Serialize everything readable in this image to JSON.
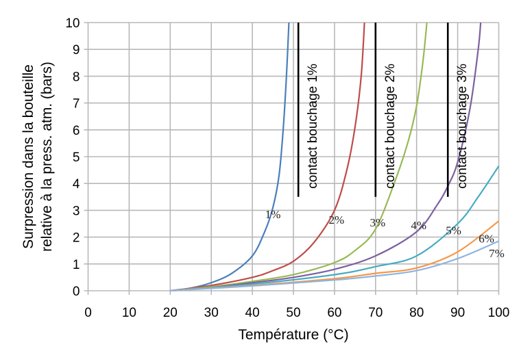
{
  "chart_data": {
    "type": "line",
    "title": "",
    "xlabel": "Température (°C)",
    "ylabel_lines": [
      "Surpression dans la bouteille",
      "relative à la press. atm. (bars)"
    ],
    "xlim": [
      0,
      100
    ],
    "ylim": [
      0,
      10
    ],
    "xticks": [
      "0",
      "10",
      "20",
      "30",
      "40",
      "50",
      "60",
      "70",
      "80",
      "90",
      "100"
    ],
    "yticks": [
      "0",
      "1",
      "2",
      "3",
      "4",
      "5",
      "6",
      "7",
      "8",
      "9",
      "10"
    ],
    "grid": true,
    "series": [
      {
        "name": "1%",
        "color": "#4a7ebb",
        "label_at": [
          45,
          2.7
        ],
        "points": [
          [
            20,
            0
          ],
          [
            25,
            0.1
          ],
          [
            30,
            0.3
          ],
          [
            35,
            0.65
          ],
          [
            40,
            1.3
          ],
          [
            43,
            2.2
          ],
          [
            45,
            3.1
          ],
          [
            46.5,
            4.3
          ],
          [
            47.5,
            6
          ],
          [
            48.3,
            8
          ],
          [
            48.9,
            10
          ]
        ]
      },
      {
        "name": "2%",
        "color": "#be4b48",
        "label_at": [
          60.5,
          2.5
        ],
        "points": [
          [
            20,
            0
          ],
          [
            30,
            0.2
          ],
          [
            40,
            0.5
          ],
          [
            45,
            0.75
          ],
          [
            50,
            1.1
          ],
          [
            55,
            1.8
          ],
          [
            60,
            3.0
          ],
          [
            63,
            4.5
          ],
          [
            65,
            6.1
          ],
          [
            66.5,
            8
          ],
          [
            67.3,
            10
          ]
        ]
      },
      {
        "name": "3%",
        "color": "#98b954",
        "label_at": [
          70.5,
          2.4
        ],
        "points": [
          [
            20,
            0
          ],
          [
            30,
            0.15
          ],
          [
            40,
            0.35
          ],
          [
            50,
            0.6
          ],
          [
            60,
            1.05
          ],
          [
            65,
            1.5
          ],
          [
            70,
            2.3
          ],
          [
            75,
            4.2
          ],
          [
            78,
            5.6
          ],
          [
            80,
            6.9
          ],
          [
            81.5,
            8.5
          ],
          [
            82.5,
            10
          ]
        ]
      },
      {
        "name": "4%",
        "color": "#7d60a0",
        "label_at": [
          80.5,
          2.3
        ],
        "points": [
          [
            20,
            0
          ],
          [
            30,
            0.12
          ],
          [
            40,
            0.3
          ],
          [
            50,
            0.5
          ],
          [
            60,
            0.8
          ],
          [
            70,
            1.3
          ],
          [
            80,
            2.2
          ],
          [
            85,
            3.2
          ],
          [
            87.6,
            3.9
          ],
          [
            90,
            4.8
          ],
          [
            93,
            6.8
          ],
          [
            95,
            9
          ],
          [
            95.6,
            10
          ]
        ]
      },
      {
        "name": "5%",
        "color": "#46aac5",
        "label_at": [
          89,
          2.1
        ],
        "points": [
          [
            20,
            0
          ],
          [
            40,
            0.25
          ],
          [
            60,
            0.6
          ],
          [
            70,
            0.9
          ],
          [
            80,
            1.3
          ],
          [
            90,
            2.5
          ],
          [
            95,
            3.5
          ],
          [
            100,
            4.65
          ]
        ]
      },
      {
        "name": "6%",
        "color": "#f79646",
        "label_at": [
          97,
          1.8
        ],
        "points": [
          [
            20,
            0
          ],
          [
            40,
            0.2
          ],
          [
            60,
            0.45
          ],
          [
            70,
            0.65
          ],
          [
            80,
            0.85
          ],
          [
            90,
            1.45
          ],
          [
            100,
            2.6
          ]
        ]
      },
      {
        "name": "7%",
        "color": "#8eb4e3",
        "label_at": [
          99.5,
          1.25
        ],
        "points": [
          [
            20,
            0
          ],
          [
            40,
            0.18
          ],
          [
            60,
            0.4
          ],
          [
            70,
            0.55
          ],
          [
            80,
            0.75
          ],
          [
            90,
            1.2
          ],
          [
            100,
            1.85
          ]
        ]
      }
    ],
    "annotations": [
      {
        "text": "contact bouchage 1%",
        "x": 51.2,
        "y_range": [
          3.5,
          10
        ]
      },
      {
        "text": "contact bouchage 2%",
        "x": 70,
        "y_range": [
          3.5,
          10
        ]
      },
      {
        "text": "contact bouchage 3%",
        "x": 87.6,
        "y_range": [
          3.5,
          10
        ]
      }
    ]
  }
}
